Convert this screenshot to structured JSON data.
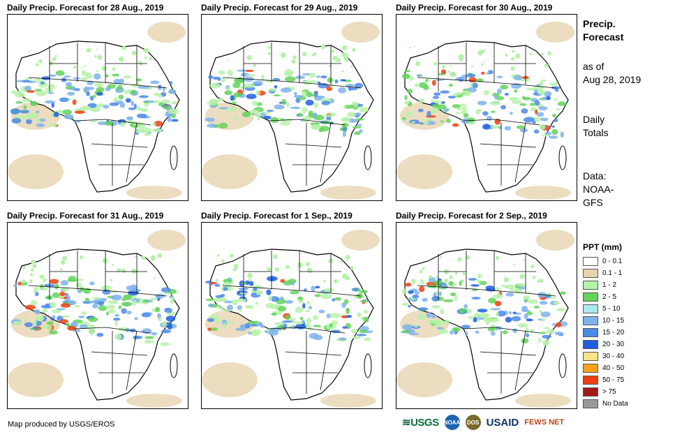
{
  "panels": [
    {
      "title": "Daily Precip. Forecast for 28 Aug., 2019"
    },
    {
      "title": "Daily Precip. Forecast for 29 Aug., 2019"
    },
    {
      "title": "Daily Precip. Forecast for 30 Aug., 2019"
    },
    {
      "title": "Daily Precip. Forecast for 31 Aug., 2019"
    },
    {
      "title": "Daily Precip. Forecast for 1 Sep., 2019"
    },
    {
      "title": "Daily Precip. Forecast for 2 Sep., 2019"
    }
  ],
  "sidebar": {
    "title_line1": "Precip.",
    "title_line2": "Forecast",
    "asof_line1": "as of",
    "asof_line2": "Aug 28, 2019",
    "totals_line1": "Daily",
    "totals_line2": "Totals",
    "data_line1": "Data:",
    "data_line2": "NOAA-",
    "data_line3": "GFS"
  },
  "legend": {
    "title": "PPT (mm)",
    "items": [
      {
        "label": "0 - 0.1",
        "color": "#ffffff"
      },
      {
        "label": "0.1 - 1",
        "color": "#e7d5b0"
      },
      {
        "label": "1 - 2",
        "color": "#b6f2a9"
      },
      {
        "label": "2 - 5",
        "color": "#63d35a"
      },
      {
        "label": "5 - 10",
        "color": "#a9eaf2"
      },
      {
        "label": "10 - 15",
        "color": "#7fb3ec"
      },
      {
        "label": "15 - 20",
        "color": "#4a8ae6"
      },
      {
        "label": "20 - 30",
        "color": "#1f5fe0"
      },
      {
        "label": "30 - 40",
        "color": "#fbe38a"
      },
      {
        "label": "40 - 50",
        "color": "#f7a21b"
      },
      {
        "label": "50 - 75",
        "color": "#ee3e0f"
      },
      {
        "label": "> 75",
        "color": "#a11a14"
      },
      {
        "label": "No Data",
        "color": "#9a9a9a"
      }
    ]
  },
  "footer": {
    "credit": "Map produced by USGS/EROS",
    "logo_usgs": "≋USGS",
    "logo_noaa": "NOAA",
    "logo_dos": "DOS",
    "logo_usaid": "USAID",
    "logo_fews": "FEWS NET"
  }
}
